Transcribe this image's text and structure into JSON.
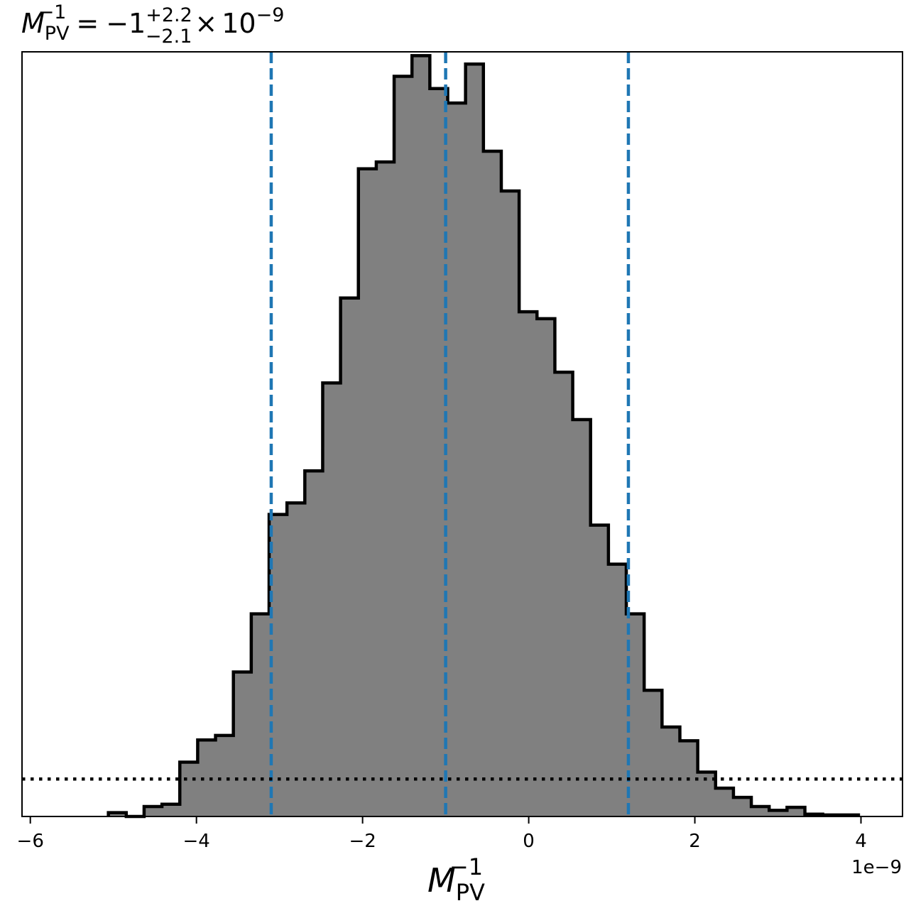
{
  "chart_data": {
    "type": "bar",
    "title": {
      "symbol": "M",
      "symbol_sub": "PV",
      "symbol_sup": "−1",
      "equals": "=",
      "value": "−1",
      "upper_err": "+2.2",
      "lower_err": "−2.1",
      "times": "×",
      "base": "10",
      "exponent": "−9"
    },
    "xlabel": {
      "symbol": "M",
      "sub": "PV",
      "sup": "−1"
    },
    "x_offset_label": "1e−9",
    "xlim": [
      -6.1,
      4.5
    ],
    "x_scale_factor": "1e-9",
    "ylim": [
      0,
      1
    ],
    "yaxis_visible": false,
    "x_ticks": [
      {
        "value": -6,
        "label": "−6"
      },
      {
        "value": -4,
        "label": "−4"
      },
      {
        "value": -2,
        "label": "−2"
      },
      {
        "value": 0,
        "label": "0"
      },
      {
        "value": 2,
        "label": "2"
      },
      {
        "value": 4,
        "label": "4"
      }
    ],
    "histogram": {
      "fill_color": "#808080",
      "edge_color": "#000000",
      "bin_width": 0.2145,
      "bins": [
        {
          "x0": -5.06,
          "h": 0.005
        },
        {
          "x0": -4.845,
          "h": 0.0
        },
        {
          "x0": -4.63,
          "h": 0.013
        },
        {
          "x0": -4.415,
          "h": 0.016
        },
        {
          "x0": -4.2,
          "h": 0.071
        },
        {
          "x0": -3.985,
          "h": 0.1
        },
        {
          "x0": -3.77,
          "h": 0.106
        },
        {
          "x0": -3.555,
          "h": 0.189
        },
        {
          "x0": -3.34,
          "h": 0.265
        },
        {
          "x0": -3.125,
          "h": 0.395
        },
        {
          "x0": -2.91,
          "h": 0.41
        },
        {
          "x0": -2.695,
          "h": 0.452
        },
        {
          "x0": -2.48,
          "h": 0.567
        },
        {
          "x0": -2.265,
          "h": 0.678
        },
        {
          "x0": -2.05,
          "h": 0.847
        },
        {
          "x0": -1.835,
          "h": 0.856
        },
        {
          "x0": -1.62,
          "h": 0.968
        },
        {
          "x0": -1.405,
          "h": 0.995
        },
        {
          "x0": -1.19,
          "h": 0.952
        },
        {
          "x0": -0.975,
          "h": 0.933
        },
        {
          "x0": -0.76,
          "h": 0.984
        },
        {
          "x0": -0.545,
          "h": 0.87
        },
        {
          "x0": -0.33,
          "h": 0.818
        },
        {
          "x0": -0.115,
          "h": 0.66
        },
        {
          "x0": 0.1,
          "h": 0.651
        },
        {
          "x0": 0.315,
          "h": 0.581
        },
        {
          "x0": 0.53,
          "h": 0.519
        },
        {
          "x0": 0.745,
          "h": 0.381
        },
        {
          "x0": 0.96,
          "h": 0.33
        },
        {
          "x0": 1.175,
          "h": 0.265
        },
        {
          "x0": 1.39,
          "h": 0.165
        },
        {
          "x0": 1.605,
          "h": 0.117
        },
        {
          "x0": 1.82,
          "h": 0.099
        },
        {
          "x0": 2.035,
          "h": 0.058
        },
        {
          "x0": 2.25,
          "h": 0.037
        },
        {
          "x0": 2.465,
          "h": 0.025
        },
        {
          "x0": 2.68,
          "h": 0.013
        },
        {
          "x0": 2.895,
          "h": 0.008
        },
        {
          "x0": 3.11,
          "h": 0.012
        },
        {
          "x0": 3.325,
          "h": 0.003
        },
        {
          "x0": 3.54,
          "h": 0.002
        },
        {
          "x0": 3.755,
          "h": 0.002
        }
      ]
    },
    "vertical_lines": {
      "color": "#1f77b4",
      "style": "dashed",
      "values": [
        -3.1,
        -1.0,
        1.2
      ]
    },
    "horizontal_line": {
      "color": "#000000",
      "style": "dotted",
      "value": 0.049
    }
  }
}
